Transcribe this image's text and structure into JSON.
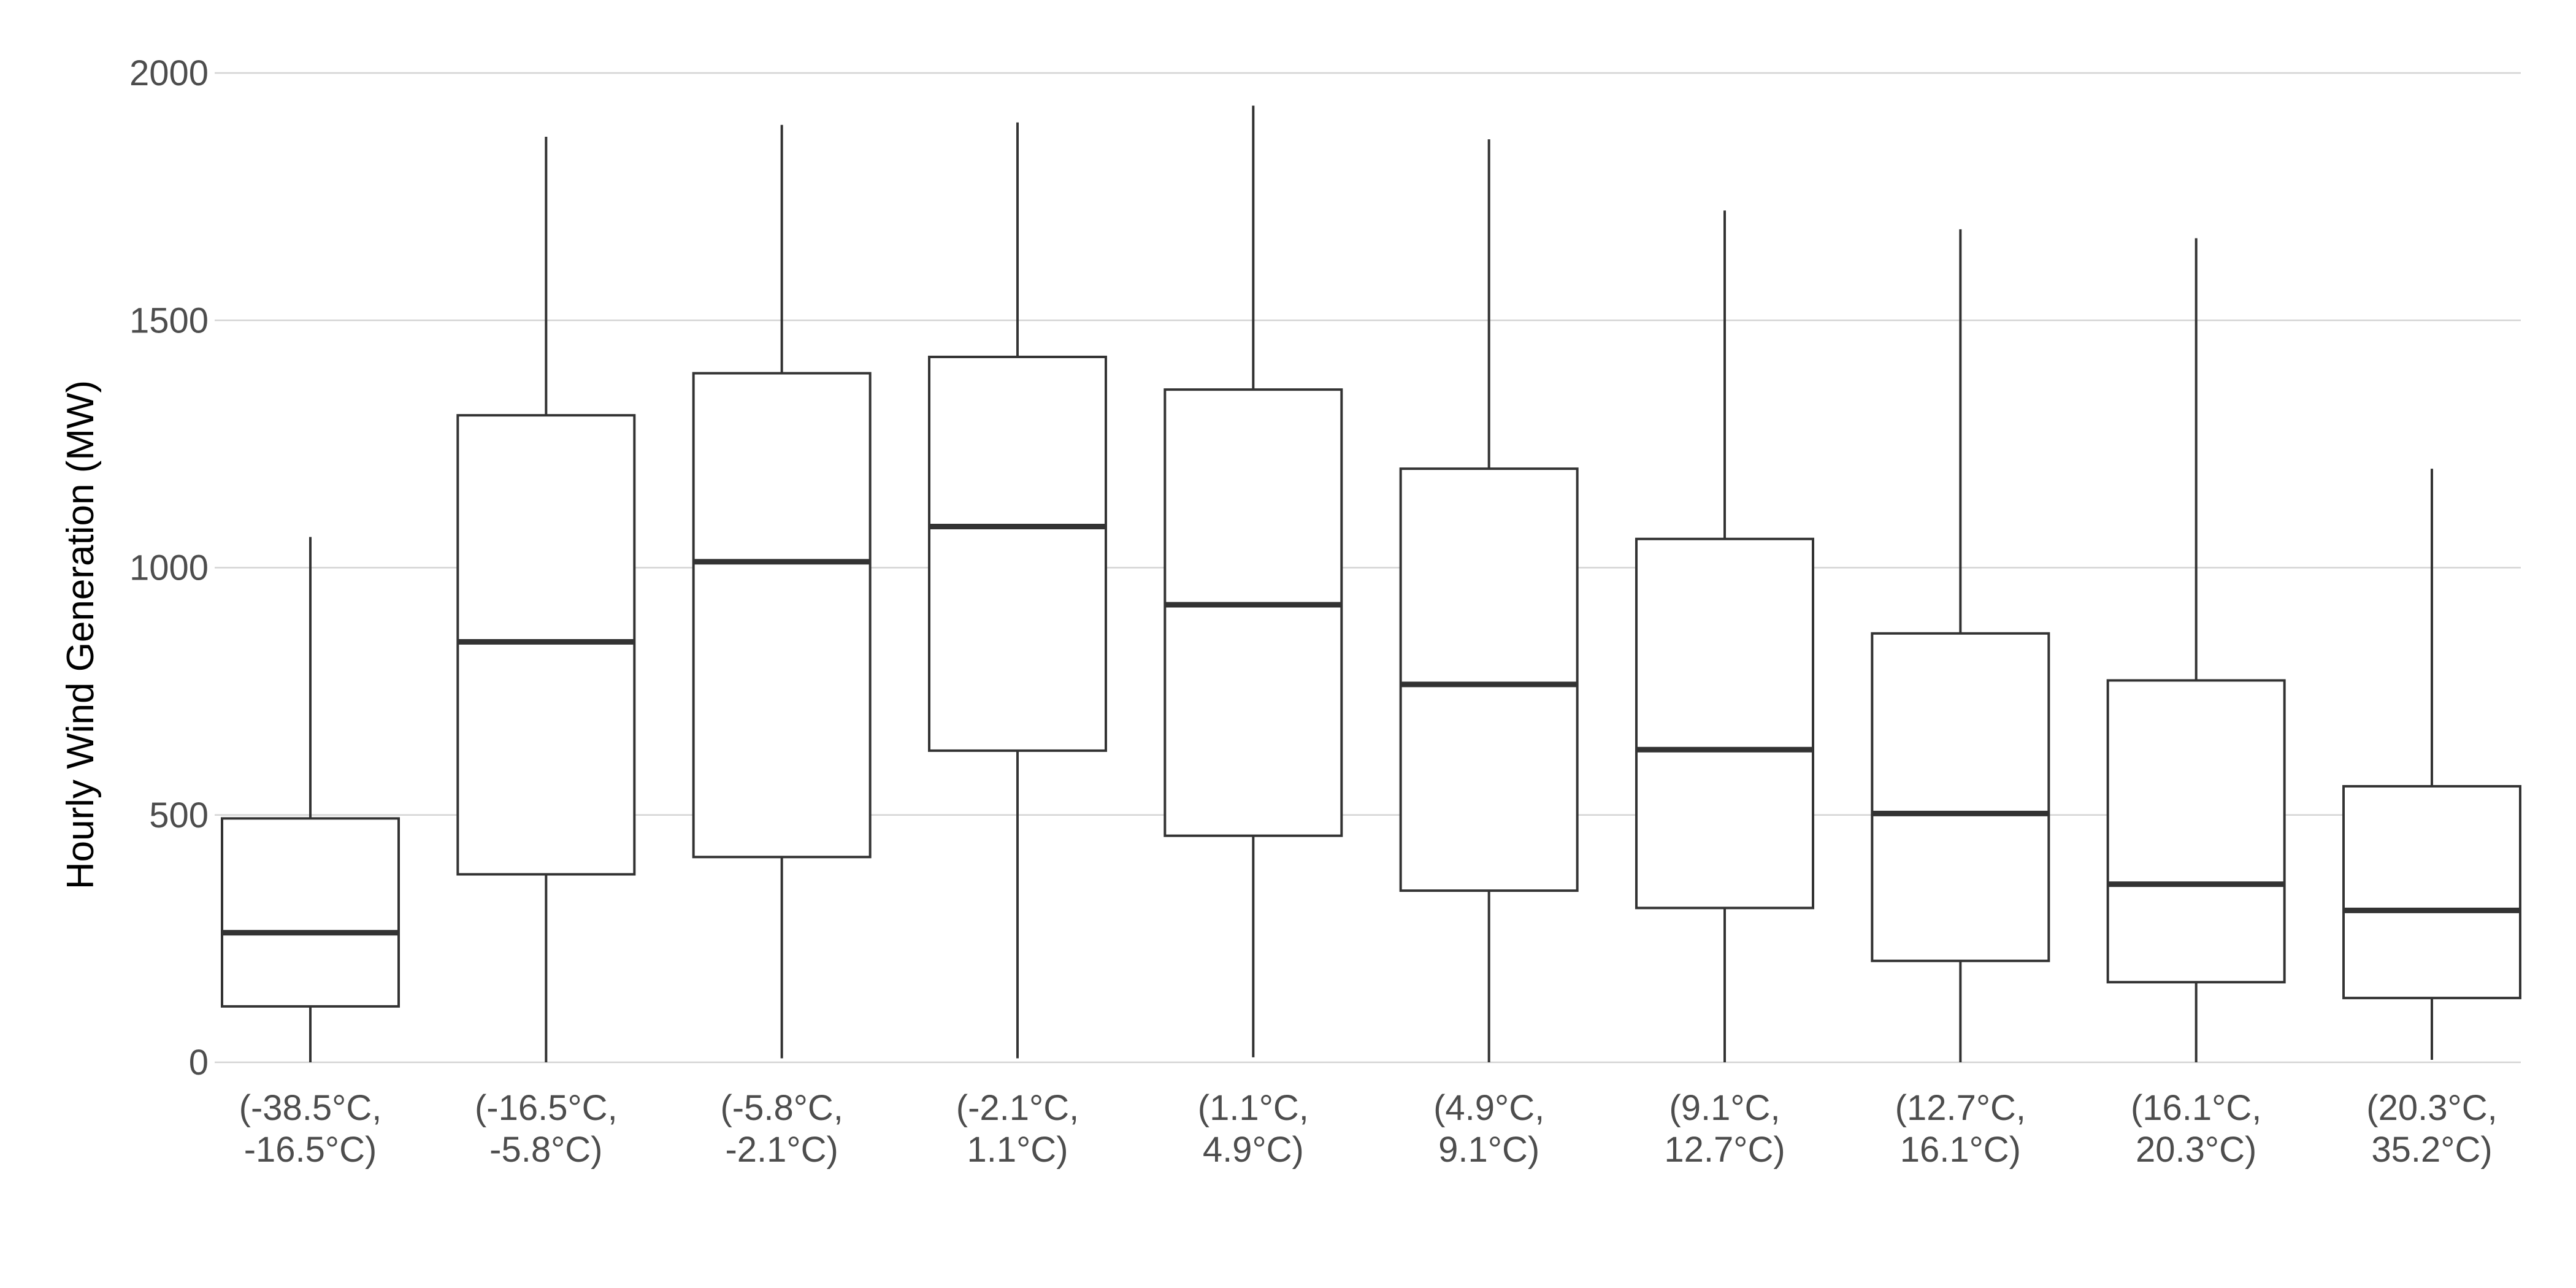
{
  "chart_data": {
    "type": "boxplot",
    "ylabel": "Hourly Wind Generation (MW)",
    "xlabel": "",
    "ylim": [
      0,
      2000
    ],
    "yticks": [
      0,
      500,
      1000,
      1500,
      2000
    ],
    "grid": "horizontal",
    "categories": [
      [
        "(-38.5°C,",
        "-16.5°C)"
      ],
      [
        "(-16.5°C,",
        "-5.8°C)"
      ],
      [
        "(-5.8°C,",
        "-2.1°C)"
      ],
      [
        "(-2.1°C,",
        "1.1°C)"
      ],
      [
        "(1.1°C,",
        "4.9°C)"
      ],
      [
        "(4.9°C,",
        "9.1°C)"
      ],
      [
        "(9.1°C,",
        "12.7°C)"
      ],
      [
        "(12.7°C,",
        "16.1°C)"
      ],
      [
        "(16.1°C,",
        "20.3°C)"
      ],
      [
        "(20.3°C,",
        "35.2°C)"
      ]
    ],
    "boxes": [
      {
        "min": 0,
        "q1": 113,
        "median": 262,
        "q3": 493,
        "max": 1062
      },
      {
        "min": 0,
        "q1": 380,
        "median": 850,
        "q3": 1308,
        "max": 1871
      },
      {
        "min": 8,
        "q1": 415,
        "median": 1012,
        "q3": 1393,
        "max": 1895
      },
      {
        "min": 8,
        "q1": 630,
        "median": 1083,
        "q3": 1426,
        "max": 1900
      },
      {
        "min": 10,
        "q1": 458,
        "median": 925,
        "q3": 1360,
        "max": 1934
      },
      {
        "min": 0,
        "q1": 347,
        "median": 764,
        "q3": 1200,
        "max": 1866
      },
      {
        "min": 0,
        "q1": 312,
        "median": 632,
        "q3": 1058,
        "max": 1722
      },
      {
        "min": 0,
        "q1": 205,
        "median": 503,
        "q3": 867,
        "max": 1684
      },
      {
        "min": 0,
        "q1": 162,
        "median": 360,
        "q3": 772,
        "max": 1666
      },
      {
        "min": 5,
        "q1": 130,
        "median": 307,
        "q3": 558,
        "max": 1200
      }
    ]
  }
}
